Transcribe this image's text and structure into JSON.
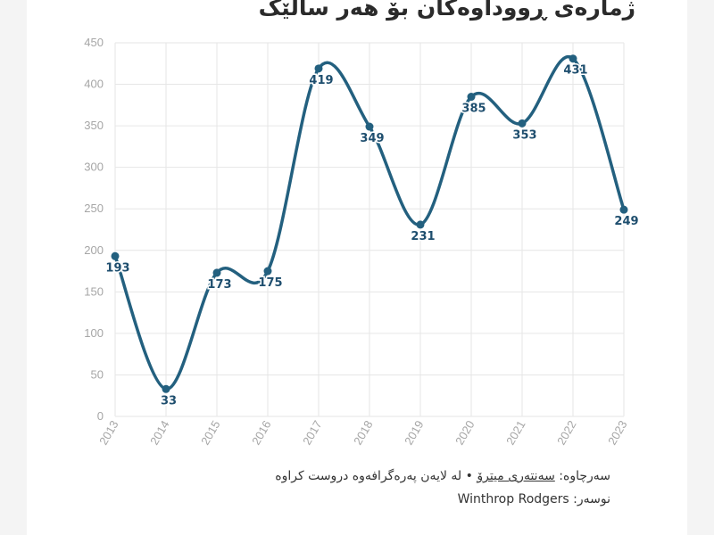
{
  "title": "ژمارەی ڕووداوەکان بۆ هەر ساڵێک",
  "footer": {
    "source_label": "سەرچاوە:",
    "source_link": "سەنتەری میترۆ",
    "source_rest": "• لە لایەن پەرەگرافەوە دروست کراوە",
    "author_label": "نوسەر:",
    "author_name": "Winthrop Rodgers"
  },
  "chart_data": {
    "type": "line",
    "title": "ژمارەی ڕووداوەکان بۆ هەر ساڵێک",
    "x": [
      "2013",
      "2014",
      "2015",
      "2016",
      "2017",
      "2018",
      "2019",
      "2020",
      "2021",
      "2022",
      "2023"
    ],
    "series": [
      {
        "values": [
          193,
          33,
          173,
          175,
          419,
          349,
          231,
          385,
          353,
          431,
          249
        ]
      }
    ],
    "ylim": [
      0,
      450
    ],
    "yticks": [
      0,
      50,
      100,
      150,
      200,
      250,
      300,
      350,
      400,
      450
    ],
    "grid": true,
    "color": "#23607f"
  }
}
